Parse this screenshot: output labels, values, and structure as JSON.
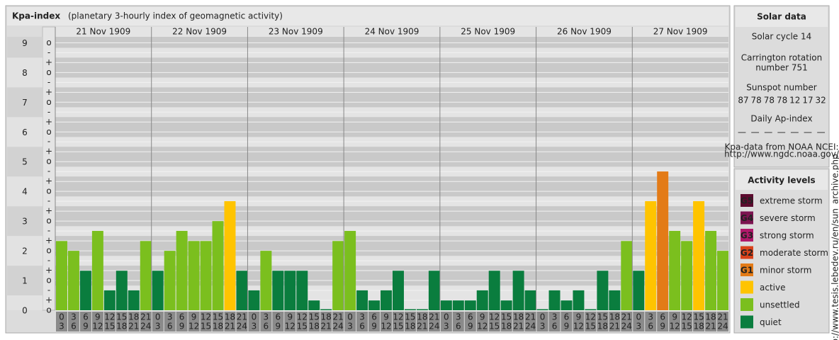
{
  "title": "Kpa-index",
  "subtitle": "(planetary 3-hourly index of geomagnetic activity)",
  "chart_data": {
    "type": "bar",
    "ylim": [
      0,
      9.2
    ],
    "yticks": [
      0,
      1,
      2,
      3,
      4,
      5,
      6,
      7,
      8,
      9
    ],
    "sublabels": [
      "o",
      "+",
      "-"
    ],
    "hours": [
      [
        0,
        3
      ],
      [
        3,
        6
      ],
      [
        6,
        9
      ],
      [
        9,
        12
      ],
      [
        12,
        15
      ],
      [
        15,
        18
      ],
      [
        18,
        21
      ],
      [
        21,
        24
      ]
    ],
    "days": [
      {
        "date": "21 Nov 1909",
        "values": [
          2.33,
          2,
          1.33,
          2.67,
          0.67,
          1.33,
          0.67,
          2.33
        ],
        "colors": [
          "#7bbf1e",
          "#7bbf1e",
          "#0a7d3e",
          "#7bbf1e",
          "#0a7d3e",
          "#0a7d3e",
          "#0a7d3e",
          "#7bbf1e"
        ]
      },
      {
        "date": "22 Nov 1909",
        "values": [
          1.33,
          2,
          2.67,
          2.33,
          2.33,
          3,
          3.67,
          1.33
        ],
        "colors": [
          "#0a7d3e",
          "#7bbf1e",
          "#7bbf1e",
          "#7bbf1e",
          "#7bbf1e",
          "#7bbf1e",
          "#ffc400",
          "#0a7d3e"
        ]
      },
      {
        "date": "23 Nov 1909",
        "values": [
          0.67,
          2,
          1.33,
          1.33,
          1.33,
          0.33,
          0,
          2.33
        ],
        "colors": [
          "#0a7d3e",
          "#7bbf1e",
          "#0a7d3e",
          "#0a7d3e",
          "#0a7d3e",
          "#0a7d3e",
          "#0a7d3e",
          "#7bbf1e"
        ]
      },
      {
        "date": "24 Nov 1909",
        "values": [
          2.67,
          0.67,
          0.33,
          0.67,
          1.33,
          0,
          0,
          1.33
        ],
        "colors": [
          "#7bbf1e",
          "#0a7d3e",
          "#0a7d3e",
          "#0a7d3e",
          "#0a7d3e",
          "#0a7d3e",
          "#0a7d3e",
          "#0a7d3e"
        ]
      },
      {
        "date": "25 Nov 1909",
        "values": [
          0.33,
          0.33,
          0.33,
          0.67,
          1.33,
          0.33,
          1.33,
          0.67
        ],
        "colors": [
          "#0a7d3e",
          "#0a7d3e",
          "#0a7d3e",
          "#0a7d3e",
          "#0a7d3e",
          "#0a7d3e",
          "#0a7d3e",
          "#0a7d3e"
        ]
      },
      {
        "date": "26 Nov 1909",
        "values": [
          0,
          0.67,
          0.33,
          0.67,
          0,
          1.33,
          0.67,
          2.33
        ],
        "colors": [
          "#0a7d3e",
          "#0a7d3e",
          "#0a7d3e",
          "#0a7d3e",
          "#0a7d3e",
          "#0a7d3e",
          "#0a7d3e",
          "#7bbf1e"
        ]
      },
      {
        "date": "27 Nov 1909",
        "values": [
          1.33,
          3.67,
          4.67,
          2.67,
          2.33,
          3.67,
          2.67,
          2
        ],
        "colors": [
          "#0a7d3e",
          "#ffc400",
          "#e37b17",
          "#7bbf1e",
          "#7bbf1e",
          "#ffc400",
          "#7bbf1e",
          "#7bbf1e"
        ]
      }
    ]
  },
  "solar_data": {
    "title": "Solar data",
    "cycle": "Solar cycle 14",
    "rotation": [
      "Carrington rotation",
      "number 751"
    ],
    "sunspot_title": "Sunspot number",
    "sunspots": [
      87,
      78,
      78,
      78,
      12,
      17,
      32
    ],
    "ap_title": "Daily Ap-index",
    "ap": [
      "—",
      "—",
      "—",
      "—",
      "—",
      "—",
      "—"
    ],
    "source": [
      "Kpa-data from NOAA NCEI:",
      "http://www.ngdc.noaa.gov/"
    ]
  },
  "activity": {
    "title": "Activity levels",
    "levels": [
      {
        "badge": "G5",
        "label": "extreme storm",
        "color": "#5c0a2e"
      },
      {
        "badge": "G4",
        "label": "severe storm",
        "color": "#7b1450"
      },
      {
        "badge": "G3",
        "label": "strong storm",
        "color": "#b0186a"
      },
      {
        "badge": "G2",
        "label": "moderate storm",
        "color": "#d9421a"
      },
      {
        "badge": "G1",
        "label": "minor storm",
        "color": "#e37b17"
      },
      {
        "label": "active",
        "color": "#ffc400"
      },
      {
        "label": "unsettled",
        "color": "#7bbf1e"
      },
      {
        "label": "quiet",
        "color": "#0a7d3e"
      }
    ]
  },
  "credit": "http://www.tesis.lebedev.ru/en/sun_archive.php"
}
